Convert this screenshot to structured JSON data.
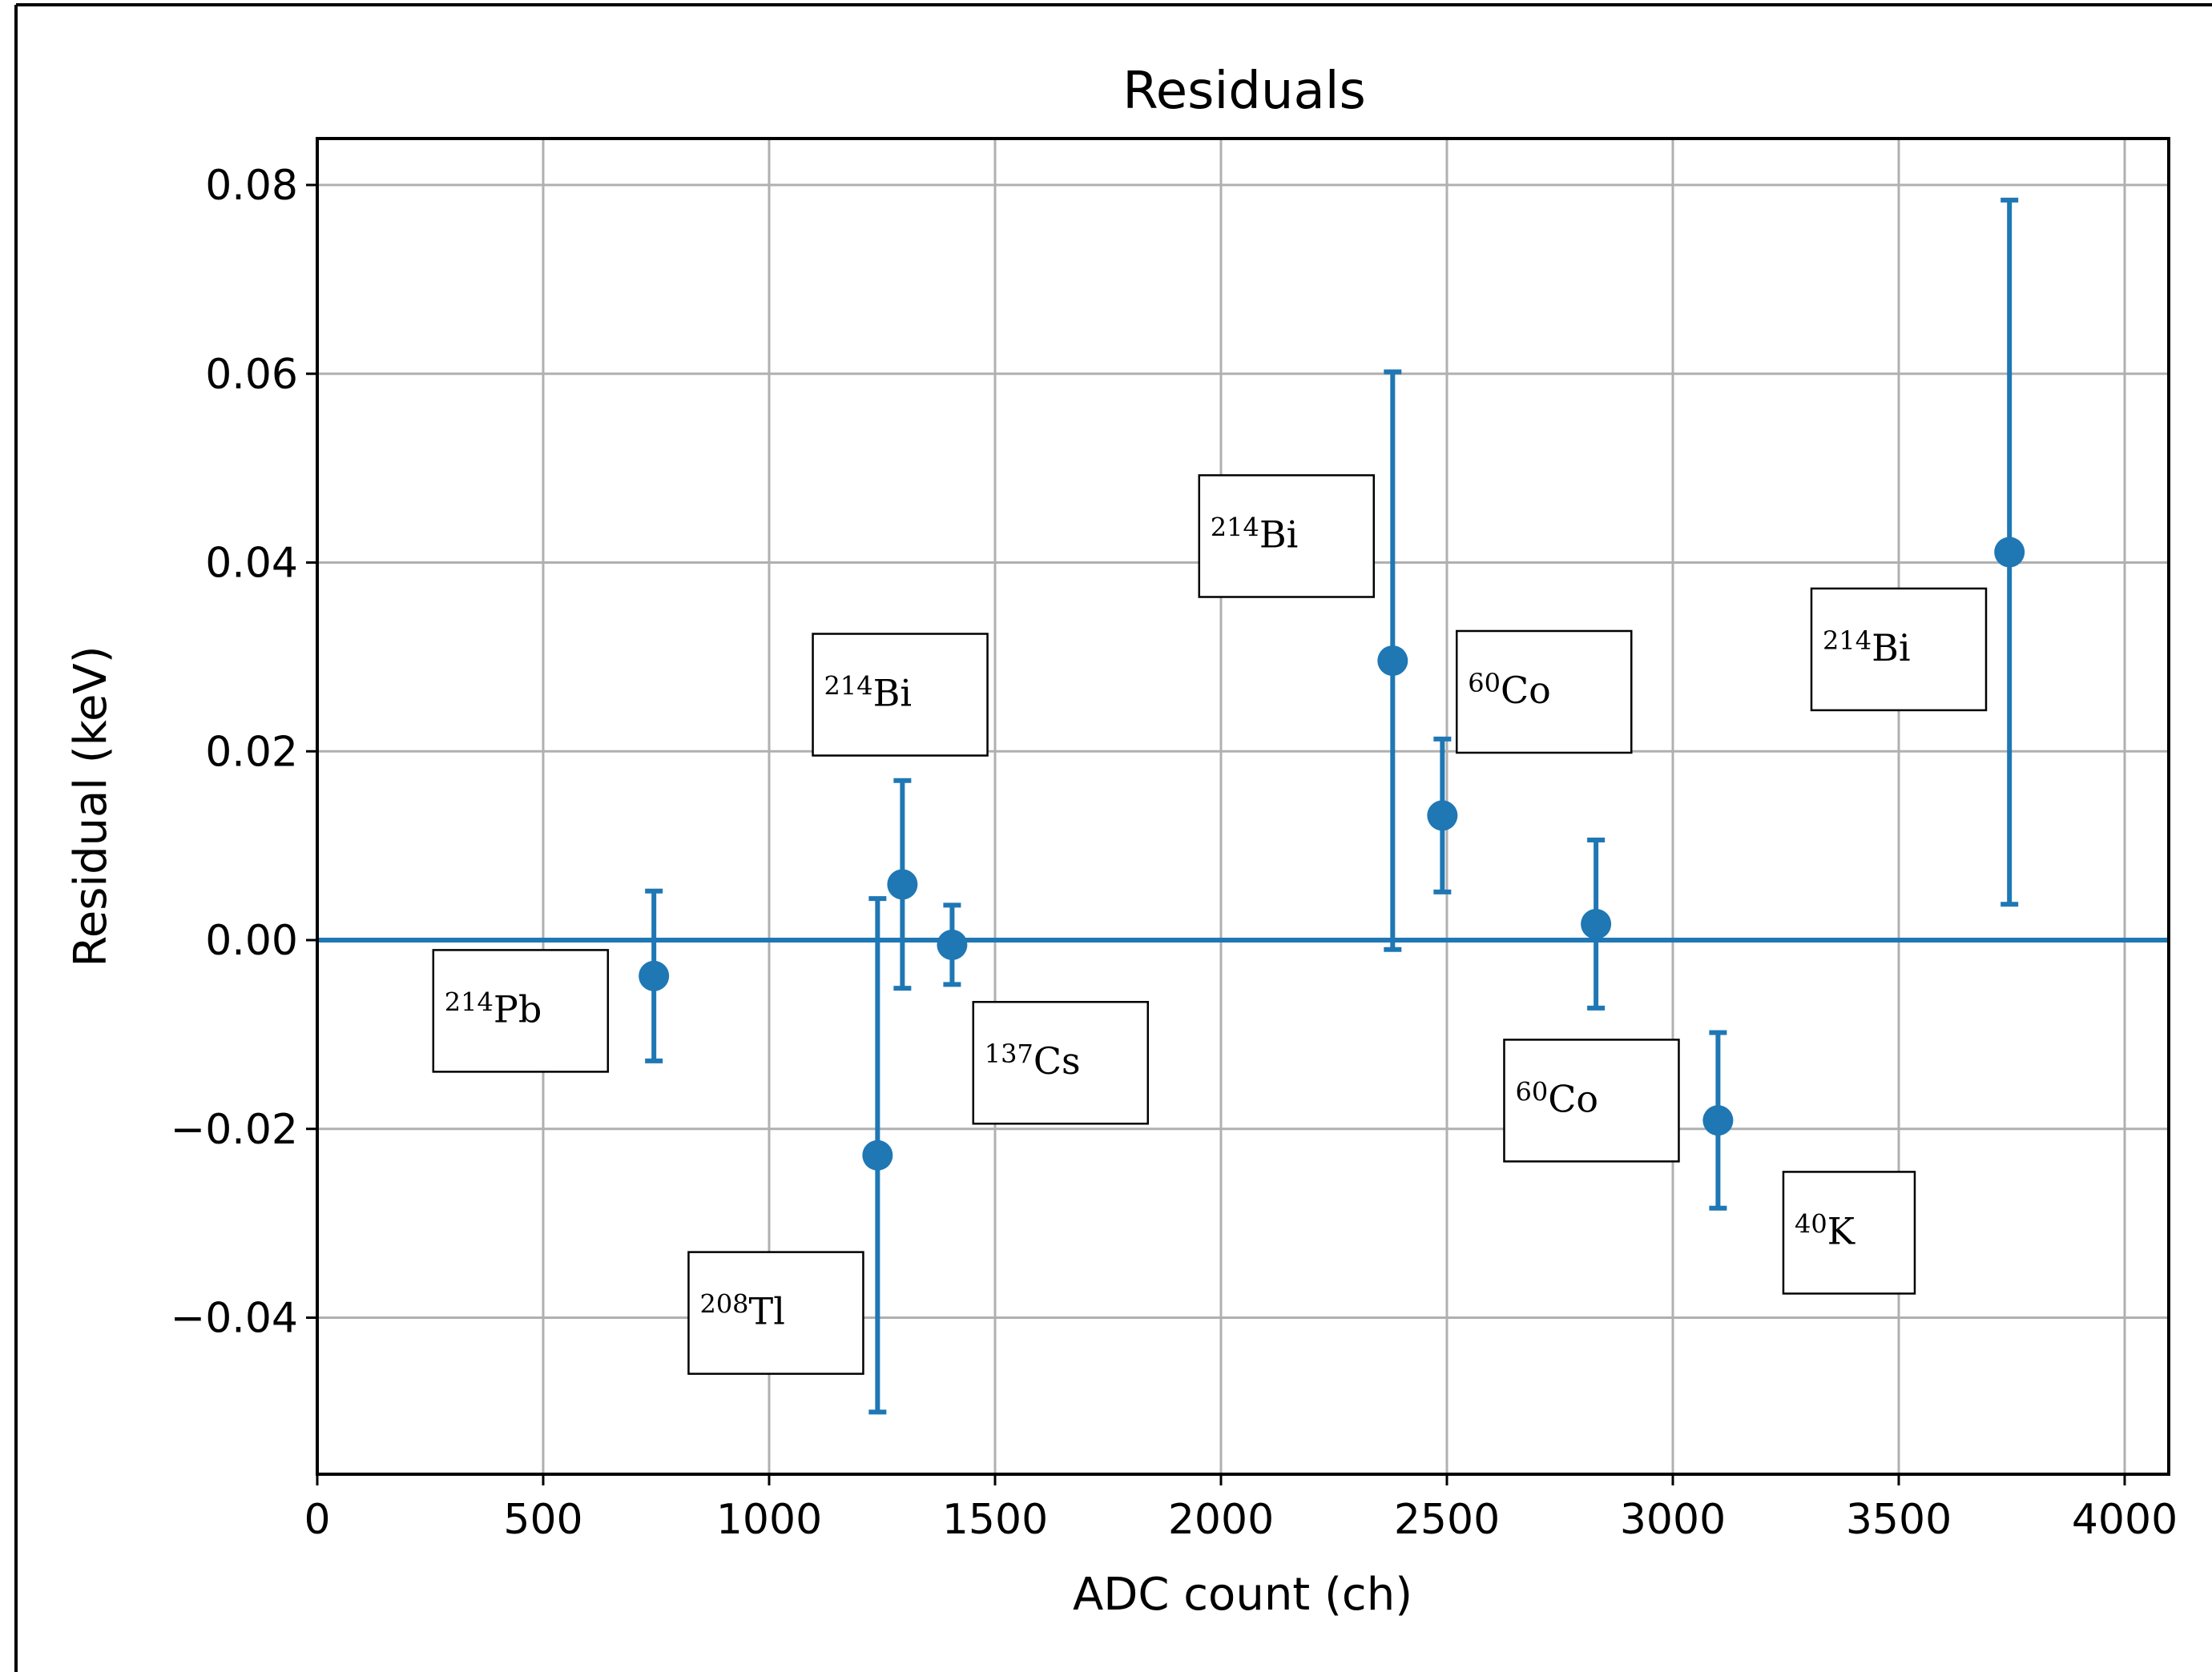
{
  "chart_data": {
    "type": "scatter",
    "title": "Residuals",
    "xlabel": "ADC count (ch)",
    "ylabel": "Residual (keV)",
    "xlim": [
      0,
      4100
    ],
    "ylim": [
      -0.057,
      0.085
    ],
    "xticks": [
      0,
      500,
      1000,
      1500,
      2000,
      2500,
      3000,
      3500,
      4000
    ],
    "xtick_labels": [
      "0",
      "500",
      "1000",
      "1500",
      "2000",
      "2500",
      "3000",
      "3500",
      "4000"
    ],
    "yticks": [
      -0.04,
      -0.02,
      0.0,
      0.02,
      0.04,
      0.06,
      0.08
    ],
    "ytick_labels": [
      "−0.04",
      "−0.02",
      "0.00",
      "0.02",
      "0.04",
      "0.06",
      "0.08"
    ],
    "grid": true,
    "series_color": "#1f77b4",
    "reference_line": {
      "y": 0.0
    },
    "points": [
      {
        "x": 745,
        "y": -0.0038,
        "err": 0.009
      },
      {
        "x": 1240,
        "y": -0.0228,
        "err": 0.0272
      },
      {
        "x": 1295,
        "y": 0.0059,
        "err": 0.011
      },
      {
        "x": 1405,
        "y": -0.0005,
        "err": 0.0042
      },
      {
        "x": 2380,
        "y": 0.0296,
        "err": 0.0306
      },
      {
        "x": 2490,
        "y": 0.0132,
        "err": 0.0081
      },
      {
        "x": 2830,
        "y": 0.0017,
        "err": 0.0089
      },
      {
        "x": 3100,
        "y": -0.0191,
        "err": 0.0093
      },
      {
        "x": 3745,
        "y": 0.0411,
        "err": 0.0373
      }
    ],
    "annotations": [
      {
        "mass": "214",
        "element": "Pb",
        "x": 450,
        "y": -0.0075
      },
      {
        "mass": "208",
        "element": "Tl",
        "x": 1015,
        "y": -0.0395
      },
      {
        "mass": "214",
        "element": "Bi",
        "x": 1290,
        "y": 0.026
      },
      {
        "mass": "137",
        "element": "Cs",
        "x": 1645,
        "y": -0.013
      },
      {
        "mass": "214",
        "element": "Bi",
        "x": 2145,
        "y": 0.0428
      },
      {
        "mass": "60",
        "element": "Co",
        "x": 2715,
        "y": 0.0263
      },
      {
        "mass": "60",
        "element": "Co",
        "x": 2820,
        "y": -0.017
      },
      {
        "mass": "40",
        "element": "K",
        "x": 3390,
        "y": -0.031
      },
      {
        "mass": "214",
        "element": "Bi",
        "x": 3500,
        "y": 0.0308
      }
    ]
  }
}
